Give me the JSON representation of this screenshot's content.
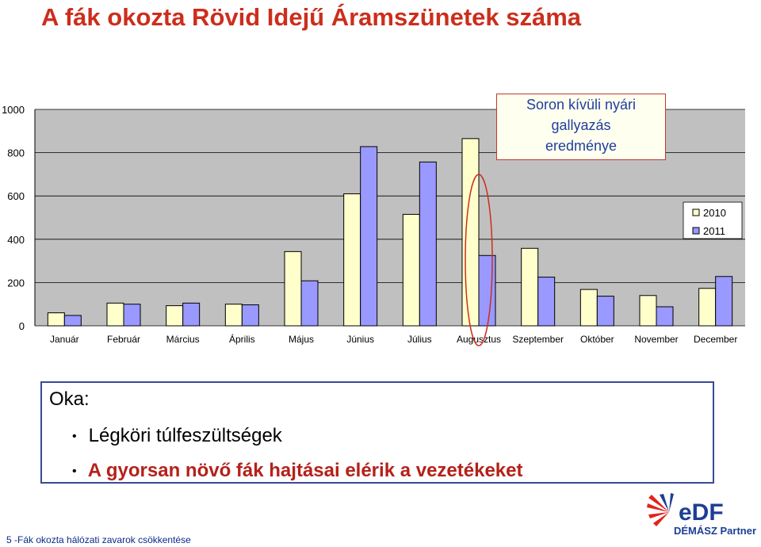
{
  "title": "A fák okozta Rövid Idejű Áramszünetek száma",
  "chart_data": {
    "type": "bar",
    "categories": [
      "Január",
      "Február",
      "Március",
      "Április",
      "Május",
      "Június",
      "Július",
      "Augusztus",
      "Szeptember",
      "Október",
      "November",
      "December"
    ],
    "series": [
      {
        "name": "2010",
        "color": "#ffffcc",
        "values": [
          60,
          105,
          93,
          100,
          343,
          610,
          515,
          865,
          358,
          168,
          140,
          173
        ]
      },
      {
        "name": "2011",
        "color": "#9999ff",
        "values": [
          48,
          100,
          105,
          97,
          208,
          828,
          757,
          325,
          225,
          137,
          88,
          228
        ]
      }
    ],
    "ylim": [
      0,
      1000
    ],
    "yticks": [
      "0",
      "200",
      "400",
      "600",
      "800",
      "1000"
    ],
    "grid": true,
    "legend_position": "right",
    "highlight": "Augusztus",
    "annotation": [
      "Soron kívüli nyári",
      "gallyazás",
      "eredménye"
    ]
  },
  "causes": {
    "heading": "Oka:",
    "items": [
      "Légköri túlfeszültségek",
      "A gyorsan növő fák hajtásai elérik a vezetékeket"
    ]
  },
  "footer": "5 -Fák okozta hálózati zavarok csökkentése",
  "logo": {
    "brand": "eDF",
    "sub": "DÉMÁSZ Partner",
    "accent": "#e2231a",
    "blue": "#1c3f94"
  }
}
